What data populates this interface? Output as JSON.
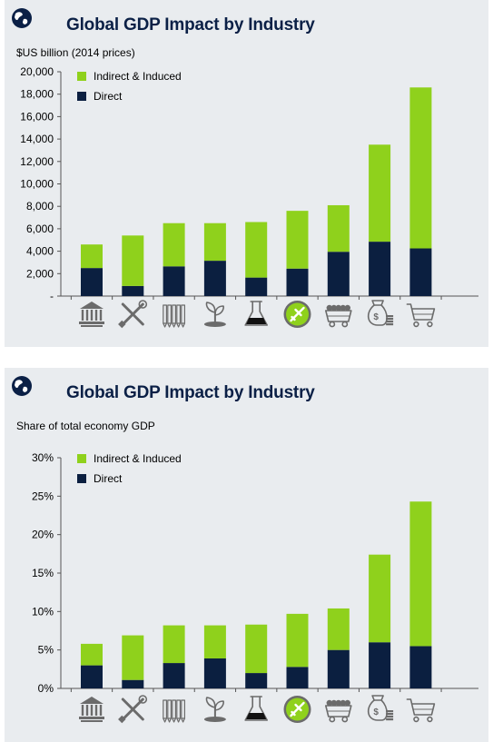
{
  "colors": {
    "indirect": "#8fd11c",
    "direct": "#0b1f40",
    "title": "#0b2046",
    "axis": "#555555",
    "icon": "#6b6b6b",
    "icon_highlight": "#8fd11c",
    "panel_bg": "#e9ecef"
  },
  "icons": [
    "bank-icon",
    "tools-icon",
    "pencils-icon",
    "plant-icon",
    "flask-icon",
    "airplane-icon",
    "mine-cart-icon",
    "money-bag-icon",
    "shopping-cart-icon"
  ],
  "chart_data": [
    {
      "type": "bar",
      "stacked": true,
      "title": "Global GDP Impact by Industry",
      "ylabel": "$US billion (2014 prices)",
      "ylim": [
        0,
        20000
      ],
      "yticks": [
        0,
        2000,
        4000,
        6000,
        8000,
        10000,
        12000,
        14000,
        16000,
        18000,
        20000
      ],
      "ytick_labels": [
        "-",
        "2,000",
        "4,000",
        "6,000",
        "8,000",
        "10,000",
        "12,000",
        "14,000",
        "16,000",
        "18,000",
        "20,000"
      ],
      "legend_position": "top-left",
      "series": [
        {
          "name": "Direct",
          "values": [
            2500,
            900,
            2650,
            3150,
            1650,
            2450,
            3950,
            4850,
            4250
          ]
        },
        {
          "name": "Indirect & Induced",
          "values": [
            2100,
            4500,
            3850,
            3350,
            4950,
            5150,
            4150,
            8650,
            14350
          ]
        }
      ],
      "legend": [
        "Indirect & Induced",
        "Direct"
      ]
    },
    {
      "type": "bar",
      "stacked": true,
      "title": "Global GDP Impact by Industry",
      "ylabel": "Share of total economy GDP",
      "ylim": [
        0,
        30
      ],
      "yticks": [
        0,
        5,
        10,
        15,
        20,
        25,
        30
      ],
      "ytick_labels": [
        "0%",
        "5%",
        "10%",
        "15%",
        "20%",
        "25%",
        "30%"
      ],
      "legend_position": "top-left",
      "series": [
        {
          "name": "Direct",
          "values": [
            3.0,
            1.1,
            3.3,
            3.9,
            2.0,
            2.8,
            5.0,
            6.0,
            5.5
          ]
        },
        {
          "name": "Indirect & Induced",
          "values": [
            2.8,
            5.8,
            4.9,
            4.3,
            6.3,
            6.9,
            5.4,
            11.4,
            18.8
          ]
        }
      ],
      "legend": [
        "Indirect & Induced",
        "Direct"
      ]
    }
  ]
}
